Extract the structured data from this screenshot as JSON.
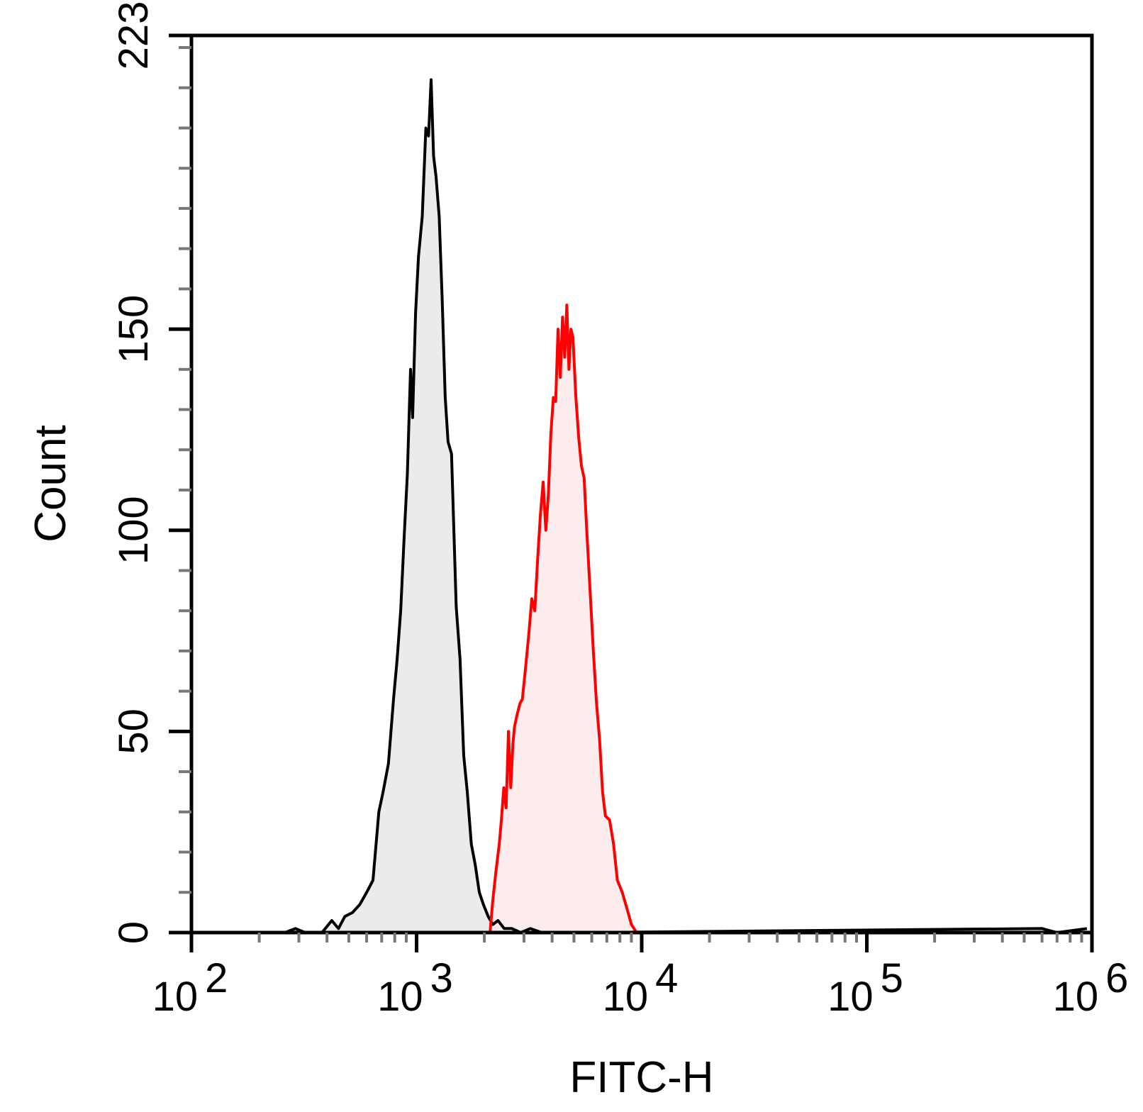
{
  "chart_data": {
    "type": "area",
    "title": "",
    "xlabel": "FITC-H",
    "ylabel": "Count",
    "xscale": "log",
    "xlim": [
      100,
      1000000
    ],
    "ylim": [
      0,
      223
    ],
    "x_ticks": [
      {
        "value": 100,
        "base": "10",
        "exp": "2"
      },
      {
        "value": 1000,
        "base": "10",
        "exp": "3"
      },
      {
        "value": 10000,
        "base": "10",
        "exp": "4"
      },
      {
        "value": 100000,
        "base": "10",
        "exp": "5"
      },
      {
        "value": 1000000,
        "base": "10",
        "exp": "6"
      }
    ],
    "y_ticks": [
      "0",
      "50",
      "100",
      "150",
      "223"
    ],
    "grid": false,
    "series": [
      {
        "color": "#000000",
        "fill": "#e8e8e8",
        "points": [
          [
            140,
            0
          ],
          [
            260,
            0
          ],
          [
            290,
            1
          ],
          [
            320,
            0
          ],
          [
            380,
            0
          ],
          [
            420,
            3
          ],
          [
            450,
            1
          ],
          [
            480,
            4
          ],
          [
            520,
            5
          ],
          [
            560,
            7
          ],
          [
            600,
            10
          ],
          [
            640,
            13
          ],
          [
            680,
            30
          ],
          [
            710,
            35
          ],
          [
            750,
            42
          ],
          [
            790,
            58
          ],
          [
            820,
            68
          ],
          [
            850,
            80
          ],
          [
            880,
            98
          ],
          [
            910,
            114
          ],
          [
            940,
            140
          ],
          [
            960,
            128
          ],
          [
            990,
            154
          ],
          [
            1020,
            168
          ],
          [
            1060,
            178
          ],
          [
            1100,
            200
          ],
          [
            1130,
            198
          ],
          [
            1160,
            212
          ],
          [
            1190,
            193
          ],
          [
            1220,
            188
          ],
          [
            1260,
            178
          ],
          [
            1300,
            157
          ],
          [
            1340,
            133
          ],
          [
            1380,
            122
          ],
          [
            1430,
            119
          ],
          [
            1500,
            81
          ],
          [
            1560,
            68
          ],
          [
            1620,
            44
          ],
          [
            1680,
            35
          ],
          [
            1750,
            22
          ],
          [
            1820,
            17
          ],
          [
            1900,
            10
          ],
          [
            1980,
            7
          ],
          [
            2080,
            4
          ],
          [
            2180,
            2
          ],
          [
            2300,
            3
          ],
          [
            2450,
            1
          ],
          [
            2650,
            1
          ],
          [
            2900,
            0
          ],
          [
            3200,
            1
          ],
          [
            3600,
            0
          ],
          [
            4200,
            0
          ],
          [
            5500,
            0
          ],
          [
            600000,
            1
          ],
          [
            700000,
            0
          ],
          [
            950000,
            1
          ]
        ]
      },
      {
        "color": "#ff0000",
        "fill": "#fde9ea",
        "points": [
          [
            2120,
            0
          ],
          [
            2180,
            8
          ],
          [
            2250,
            15
          ],
          [
            2330,
            22
          ],
          [
            2380,
            28
          ],
          [
            2440,
            36
          ],
          [
            2500,
            31
          ],
          [
            2560,
            50
          ],
          [
            2620,
            36
          ],
          [
            2680,
            47
          ],
          [
            2720,
            51
          ],
          [
            2790,
            54
          ],
          [
            2880,
            57
          ],
          [
            2950,
            58
          ],
          [
            3050,
            66
          ],
          [
            3150,
            74
          ],
          [
            3250,
            83
          ],
          [
            3350,
            80
          ],
          [
            3450,
            93
          ],
          [
            3550,
            104
          ],
          [
            3650,
            112
          ],
          [
            3750,
            100
          ],
          [
            3850,
            109
          ],
          [
            3950,
            124
          ],
          [
            4050,
            133
          ],
          [
            4150,
            132
          ],
          [
            4250,
            150
          ],
          [
            4350,
            138
          ],
          [
            4450,
            153
          ],
          [
            4550,
            143
          ],
          [
            4650,
            156
          ],
          [
            4750,
            140
          ],
          [
            4850,
            150
          ],
          [
            4950,
            148
          ],
          [
            5100,
            133
          ],
          [
            5250,
            123
          ],
          [
            5400,
            116
          ],
          [
            5550,
            113
          ],
          [
            5700,
            100
          ],
          [
            5900,
            85
          ],
          [
            6100,
            70
          ],
          [
            6300,
            57
          ],
          [
            6500,
            48
          ],
          [
            6700,
            35
          ],
          [
            6900,
            29
          ],
          [
            7200,
            28
          ],
          [
            7500,
            22
          ],
          [
            7800,
            13
          ],
          [
            8200,
            10
          ],
          [
            8600,
            6
          ],
          [
            9000,
            2
          ],
          [
            9500,
            0
          ]
        ]
      }
    ]
  }
}
